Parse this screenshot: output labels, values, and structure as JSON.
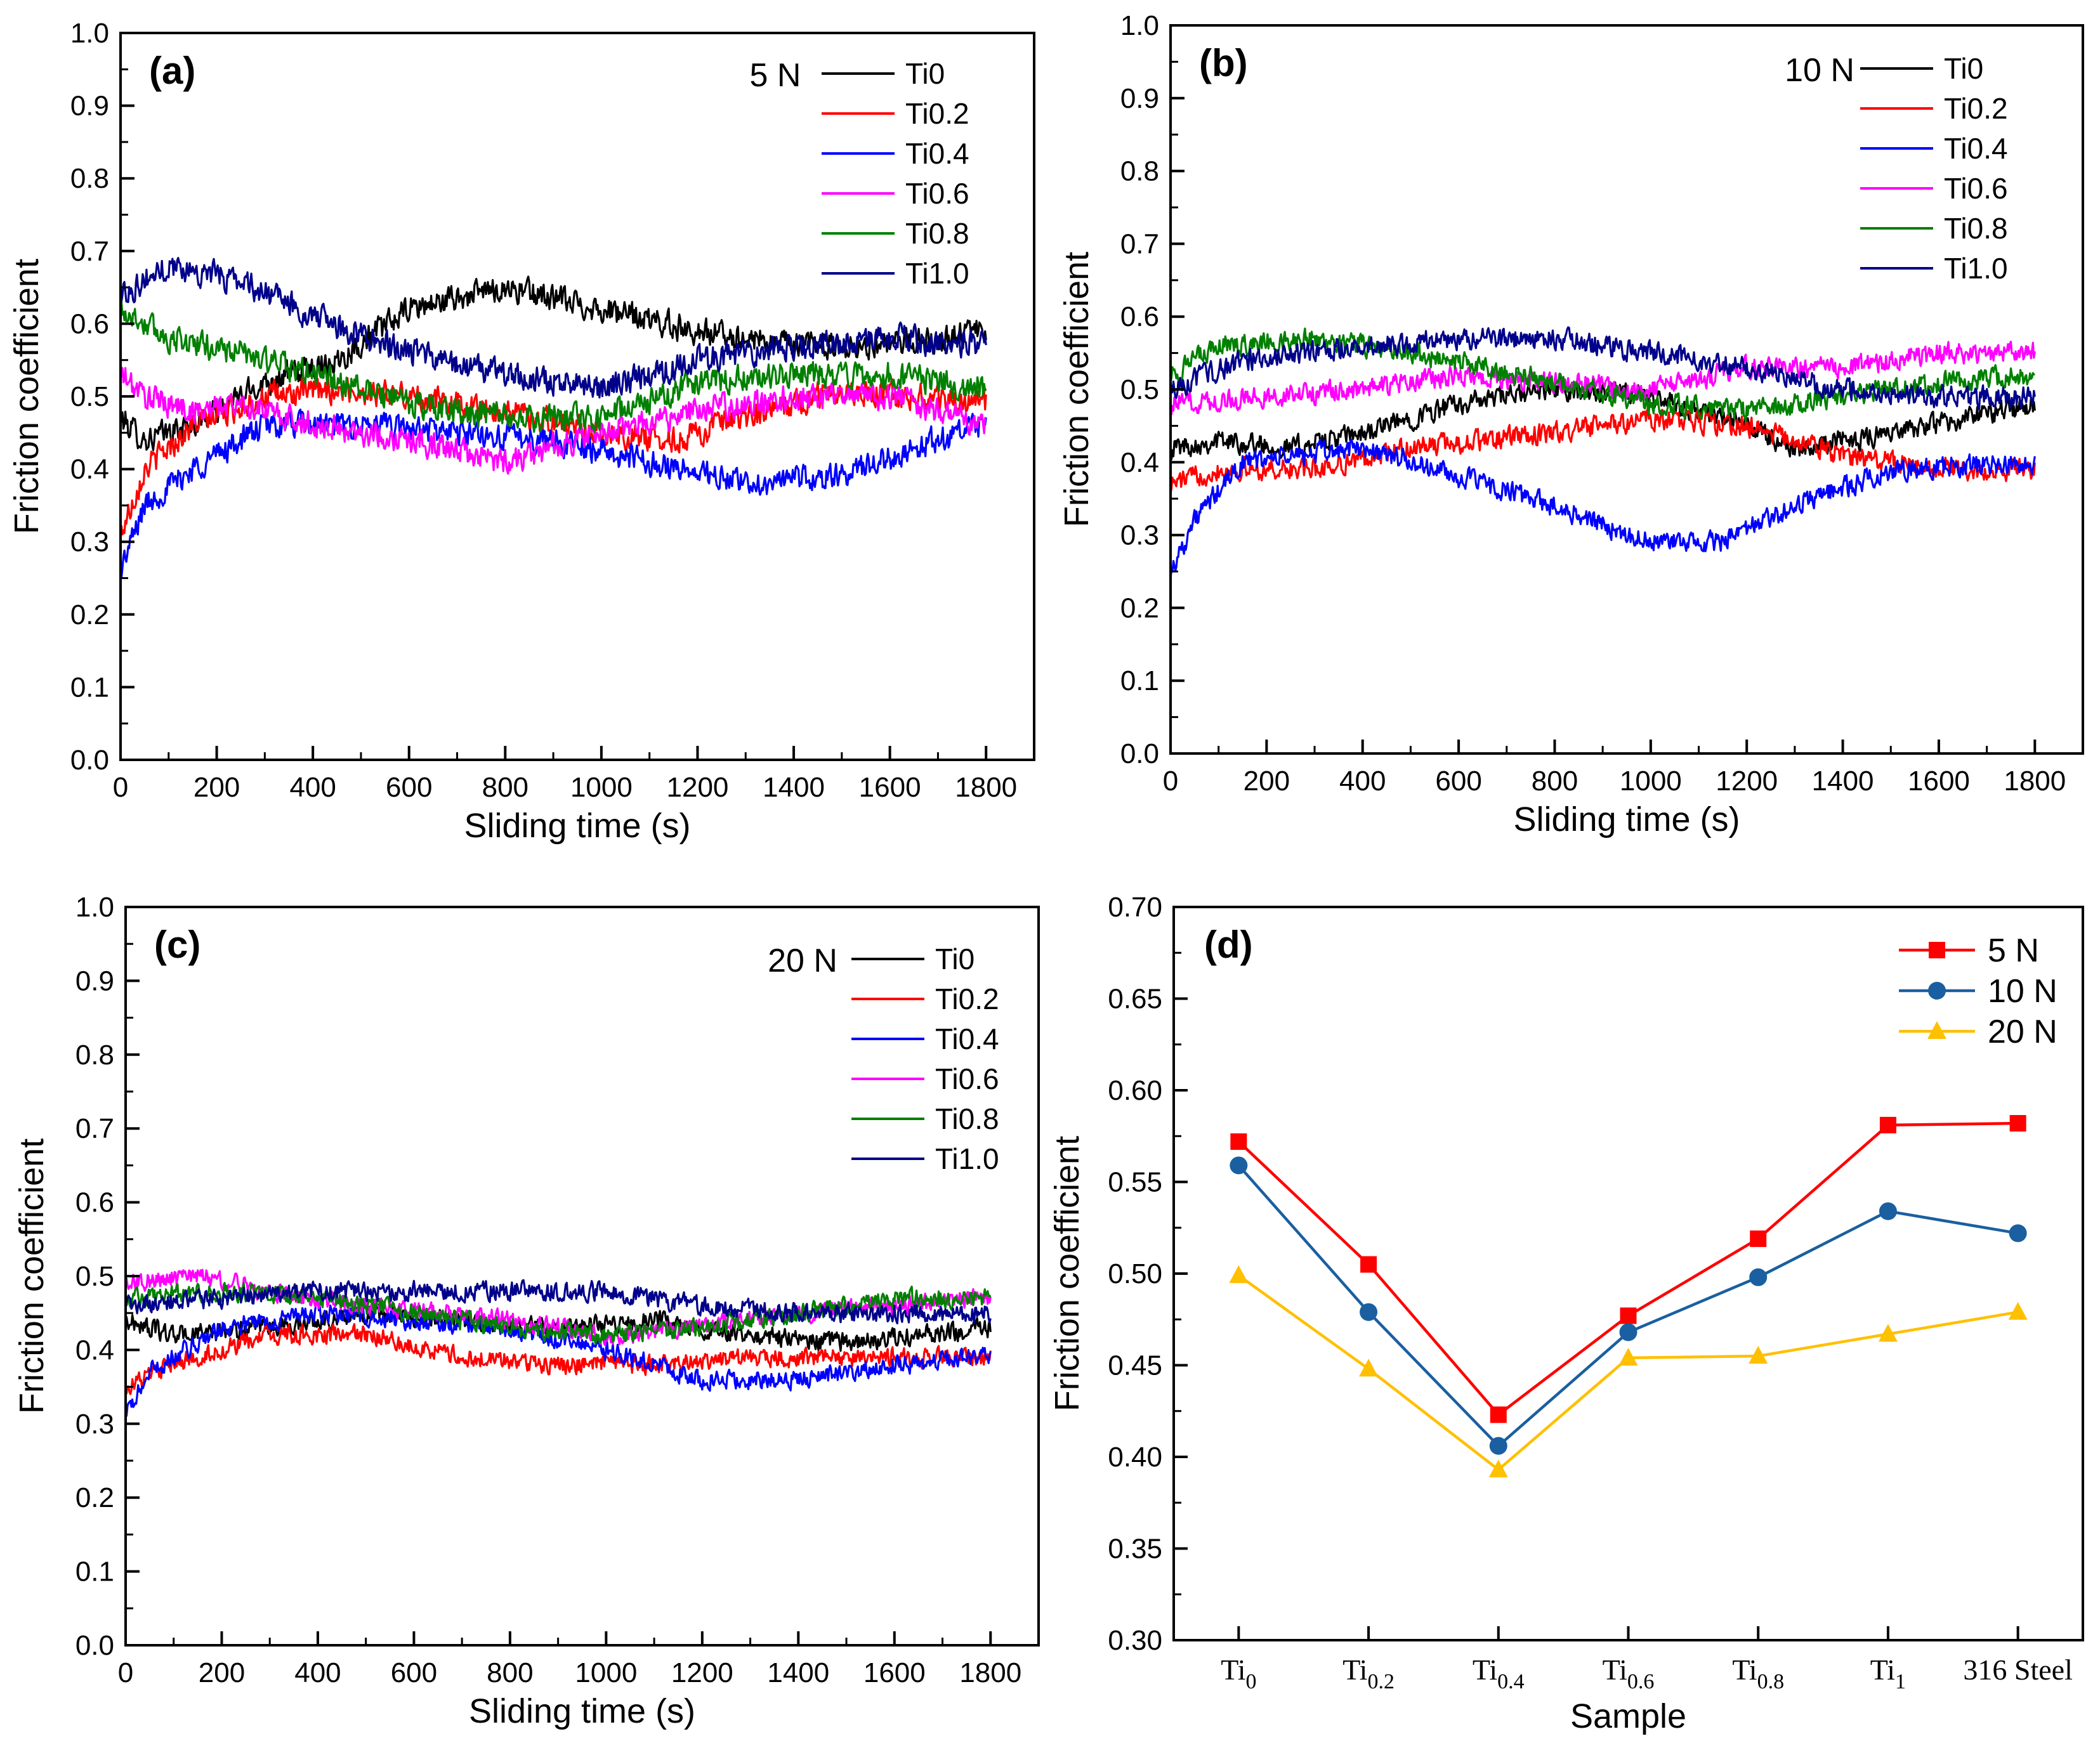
{
  "chart_data": [
    {
      "type": "line",
      "panel_label": "(a)",
      "load_label": "5 N",
      "xlabel": "Sliding time (s)",
      "ylabel": "Friction coefficient",
      "xlim": [
        0,
        1900
      ],
      "ylim": [
        0,
        1.0
      ],
      "xticks": [
        0,
        200,
        400,
        600,
        800,
        1000,
        1200,
        1400,
        1600,
        1800
      ],
      "yticks": [
        0.0,
        0.1,
        0.2,
        0.3,
        0.4,
        0.5,
        0.6,
        0.7,
        0.8,
        0.9,
        1.0
      ],
      "noise_amp": 0.05,
      "series": [
        {
          "name": "Ti0",
          "color": "#000000",
          "keypoints": [
            [
              0,
              0.47
            ],
            [
              50,
              0.44
            ],
            [
              150,
              0.46
            ],
            [
              300,
              0.52
            ],
            [
              450,
              0.55
            ],
            [
              600,
              0.62
            ],
            [
              800,
              0.65
            ],
            [
              1000,
              0.62
            ],
            [
              1200,
              0.59
            ],
            [
              1400,
              0.57
            ],
            [
              1600,
              0.57
            ],
            [
              1800,
              0.59
            ]
          ]
        },
        {
          "name": "Ti0.2",
          "color": "#ff0000",
          "keypoints": [
            [
              0,
              0.31
            ],
            [
              50,
              0.4
            ],
            [
              150,
              0.46
            ],
            [
              300,
              0.5
            ],
            [
              450,
              0.51
            ],
            [
              600,
              0.5
            ],
            [
              800,
              0.48
            ],
            [
              1000,
              0.45
            ],
            [
              1150,
              0.44
            ],
            [
              1300,
              0.47
            ],
            [
              1500,
              0.51
            ],
            [
              1800,
              0.49
            ]
          ]
        },
        {
          "name": "Ti0.4",
          "color": "#0000ff",
          "keypoints": [
            [
              0,
              0.26
            ],
            [
              50,
              0.35
            ],
            [
              150,
              0.4
            ],
            [
              300,
              0.46
            ],
            [
              500,
              0.46
            ],
            [
              700,
              0.45
            ],
            [
              900,
              0.44
            ],
            [
              1100,
              0.41
            ],
            [
              1300,
              0.38
            ],
            [
              1500,
              0.39
            ],
            [
              1650,
              0.43
            ],
            [
              1800,
              0.46
            ]
          ]
        },
        {
          "name": "Ti0.6",
          "color": "#ff00ff",
          "keypoints": [
            [
              0,
              0.53
            ],
            [
              50,
              0.5
            ],
            [
              150,
              0.48
            ],
            [
              250,
              0.49
            ],
            [
              400,
              0.46
            ],
            [
              600,
              0.44
            ],
            [
              800,
              0.41
            ],
            [
              1000,
              0.45
            ],
            [
              1200,
              0.48
            ],
            [
              1400,
              0.5
            ],
            [
              1600,
              0.5
            ],
            [
              1800,
              0.46
            ]
          ]
        },
        {
          "name": "Ti0.8",
          "color": "#008000",
          "keypoints": [
            [
              0,
              0.62
            ],
            [
              100,
              0.58
            ],
            [
              250,
              0.56
            ],
            [
              400,
              0.53
            ],
            [
              600,
              0.49
            ],
            [
              800,
              0.47
            ],
            [
              1000,
              0.47
            ],
            [
              1200,
              0.52
            ],
            [
              1400,
              0.53
            ],
            [
              1600,
              0.53
            ],
            [
              1800,
              0.51
            ]
          ]
        },
        {
          "name": "Ti1.0",
          "color": "#00008b",
          "keypoints": [
            [
              0,
              0.64
            ],
            [
              100,
              0.68
            ],
            [
              250,
              0.66
            ],
            [
              400,
              0.61
            ],
            [
              600,
              0.56
            ],
            [
              800,
              0.53
            ],
            [
              1000,
              0.51
            ],
            [
              1200,
              0.55
            ],
            [
              1400,
              0.57
            ],
            [
              1600,
              0.58
            ],
            [
              1800,
              0.57
            ]
          ]
        }
      ]
    },
    {
      "type": "line",
      "panel_label": "(b)",
      "load_label": "10 N",
      "xlabel": "Sliding time (s)",
      "ylabel": "Friction coefficient",
      "xlim": [
        0,
        1900
      ],
      "ylim": [
        0,
        1.0
      ],
      "xticks": [
        0,
        200,
        400,
        600,
        800,
        1000,
        1200,
        1400,
        1600,
        1800
      ],
      "yticks": [
        0.0,
        0.1,
        0.2,
        0.3,
        0.4,
        0.5,
        0.6,
        0.7,
        0.8,
        0.9,
        1.0
      ],
      "noise_amp": 0.04,
      "series": [
        {
          "name": "Ti0",
          "color": "#000000",
          "keypoints": [
            [
              0,
              0.42
            ],
            [
              100,
              0.43
            ],
            [
              250,
              0.42
            ],
            [
              400,
              0.44
            ],
            [
              600,
              0.48
            ],
            [
              800,
              0.5
            ],
            [
              1000,
              0.49
            ],
            [
              1200,
              0.45
            ],
            [
              1300,
              0.42
            ],
            [
              1500,
              0.44
            ],
            [
              1800,
              0.48
            ]
          ]
        },
        {
          "name": "Ti0.2",
          "color": "#ff0000",
          "keypoints": [
            [
              0,
              0.37
            ],
            [
              100,
              0.39
            ],
            [
              300,
              0.39
            ],
            [
              500,
              0.42
            ],
            [
              800,
              0.44
            ],
            [
              1000,
              0.46
            ],
            [
              1200,
              0.45
            ],
            [
              1400,
              0.41
            ],
            [
              1600,
              0.39
            ],
            [
              1800,
              0.39
            ]
          ]
        },
        {
          "name": "Ti0.4",
          "color": "#0000ff",
          "keypoints": [
            [
              0,
              0.25
            ],
            [
              50,
              0.32
            ],
            [
              150,
              0.4
            ],
            [
              400,
              0.42
            ],
            [
              600,
              0.38
            ],
            [
              800,
              0.34
            ],
            [
              1000,
              0.29
            ],
            [
              1150,
              0.29
            ],
            [
              1300,
              0.34
            ],
            [
              1500,
              0.39
            ],
            [
              1800,
              0.4
            ]
          ]
        },
        {
          "name": "Ti0.6",
          "color": "#ff00ff",
          "keypoints": [
            [
              0,
              0.48
            ],
            [
              200,
              0.49
            ],
            [
              400,
              0.5
            ],
            [
              600,
              0.52
            ],
            [
              800,
              0.51
            ],
            [
              1000,
              0.5
            ],
            [
              1200,
              0.53
            ],
            [
              1400,
              0.53
            ],
            [
              1600,
              0.55
            ],
            [
              1800,
              0.55
            ]
          ]
        },
        {
          "name": "Ti0.8",
          "color": "#008000",
          "keypoints": [
            [
              0,
              0.52
            ],
            [
              100,
              0.56
            ],
            [
              300,
              0.57
            ],
            [
              500,
              0.55
            ],
            [
              800,
              0.51
            ],
            [
              1000,
              0.48
            ],
            [
              1200,
              0.47
            ],
            [
              1400,
              0.49
            ],
            [
              1600,
              0.51
            ],
            [
              1800,
              0.52
            ]
          ]
        },
        {
          "name": "Ti1.0",
          "color": "#00008b",
          "keypoints": [
            [
              0,
              0.5
            ],
            [
              150,
              0.54
            ],
            [
              400,
              0.56
            ],
            [
              600,
              0.57
            ],
            [
              800,
              0.57
            ],
            [
              1000,
              0.55
            ],
            [
              1200,
              0.53
            ],
            [
              1400,
              0.5
            ],
            [
              1600,
              0.49
            ],
            [
              1800,
              0.49
            ]
          ]
        }
      ]
    },
    {
      "type": "line",
      "panel_label": "(c)",
      "load_label": "20 N",
      "xlabel": "Sliding time (s)",
      "ylabel": "Friction coefficient",
      "xlim": [
        0,
        1900
      ],
      "ylim": [
        0,
        1.0
      ],
      "xticks": [
        0,
        200,
        400,
        600,
        800,
        1000,
        1200,
        1400,
        1600,
        1800
      ],
      "yticks": [
        0.0,
        0.1,
        0.2,
        0.3,
        0.4,
        0.5,
        0.6,
        0.7,
        0.8,
        0.9,
        1.0
      ],
      "noise_amp": 0.035,
      "series": [
        {
          "name": "Ti0",
          "color": "#000000",
          "keypoints": [
            [
              0,
              0.44
            ],
            [
              100,
              0.42
            ],
            [
              300,
              0.43
            ],
            [
              500,
              0.45
            ],
            [
              700,
              0.44
            ],
            [
              900,
              0.43
            ],
            [
              1100,
              0.44
            ],
            [
              1300,
              0.42
            ],
            [
              1500,
              0.41
            ],
            [
              1800,
              0.43
            ]
          ]
        },
        {
          "name": "Ti0.2",
          "color": "#ff0000",
          "keypoints": [
            [
              0,
              0.35
            ],
            [
              100,
              0.38
            ],
            [
              300,
              0.42
            ],
            [
              500,
              0.42
            ],
            [
              700,
              0.39
            ],
            [
              900,
              0.38
            ],
            [
              1100,
              0.38
            ],
            [
              1300,
              0.39
            ],
            [
              1500,
              0.39
            ],
            [
              1800,
              0.39
            ]
          ]
        },
        {
          "name": "Ti0.4",
          "color": "#0000ff",
          "keypoints": [
            [
              0,
              0.31
            ],
            [
              50,
              0.37
            ],
            [
              200,
              0.43
            ],
            [
              400,
              0.45
            ],
            [
              600,
              0.44
            ],
            [
              800,
              0.43
            ],
            [
              1000,
              0.4
            ],
            [
              1200,
              0.36
            ],
            [
              1400,
              0.36
            ],
            [
              1600,
              0.38
            ],
            [
              1800,
              0.39
            ]
          ]
        },
        {
          "name": "Ti0.6",
          "color": "#ff00ff",
          "keypoints": [
            [
              0,
              0.49
            ],
            [
              150,
              0.5
            ],
            [
              300,
              0.48
            ],
            [
              500,
              0.46
            ],
            [
              800,
              0.44
            ],
            [
              1000,
              0.42
            ],
            [
              1200,
              0.43
            ],
            [
              1400,
              0.45
            ],
            [
              1600,
              0.46
            ],
            [
              1800,
              0.47
            ]
          ]
        },
        {
          "name": "Ti0.8",
          "color": "#008000",
          "keypoints": [
            [
              0,
              0.47
            ],
            [
              200,
              0.48
            ],
            [
              400,
              0.47
            ],
            [
              600,
              0.45
            ],
            [
              800,
              0.43
            ],
            [
              1000,
              0.42
            ],
            [
              1200,
              0.43
            ],
            [
              1400,
              0.45
            ],
            [
              1600,
              0.47
            ],
            [
              1800,
              0.47
            ]
          ]
        },
        {
          "name": "Ti1.0",
          "color": "#00008b",
          "keypoints": [
            [
              0,
              0.46
            ],
            [
              200,
              0.47
            ],
            [
              400,
              0.48
            ],
            [
              600,
              0.48
            ],
            [
              800,
              0.48
            ],
            [
              1000,
              0.48
            ],
            [
              1200,
              0.46
            ],
            [
              1400,
              0.45
            ],
            [
              1600,
              0.45
            ],
            [
              1800,
              0.45
            ]
          ]
        }
      ]
    },
    {
      "type": "line",
      "panel_label": "(d)",
      "xlabel": "Sample",
      "ylabel": "Friction coefficient",
      "ylim": [
        0.3,
        0.7
      ],
      "yticks": [
        "0.30",
        "0.35",
        "0.40",
        "0.45",
        "0.50",
        "0.55",
        "0.60",
        "0.65",
        "0.70"
      ],
      "categories": [
        {
          "main": "Ti",
          "sub": "0"
        },
        {
          "main": "Ti",
          "sub": "0.2"
        },
        {
          "main": "Ti",
          "sub": "0.4"
        },
        {
          "main": "Ti",
          "sub": "0.6"
        },
        {
          "main": "Ti",
          "sub": "0.8"
        },
        {
          "main": "Ti",
          "sub": "1"
        },
        {
          "main": "316 Steel",
          "sub": ""
        }
      ],
      "series": [
        {
          "name": "5 N",
          "color": "#ff0000",
          "marker": "square",
          "values": [
            0.572,
            0.505,
            0.423,
            0.477,
            0.519,
            0.581,
            0.582
          ]
        },
        {
          "name": "10 N",
          "color": "#1a5fa0",
          "marker": "circle",
          "values": [
            0.559,
            0.479,
            0.406,
            0.468,
            0.498,
            0.534,
            0.522
          ]
        },
        {
          "name": "20 N",
          "color": "#ffc000",
          "marker": "triangle",
          "values": [
            0.499,
            0.448,
            0.393,
            0.454,
            0.455,
            0.467,
            0.479
          ]
        }
      ]
    }
  ]
}
